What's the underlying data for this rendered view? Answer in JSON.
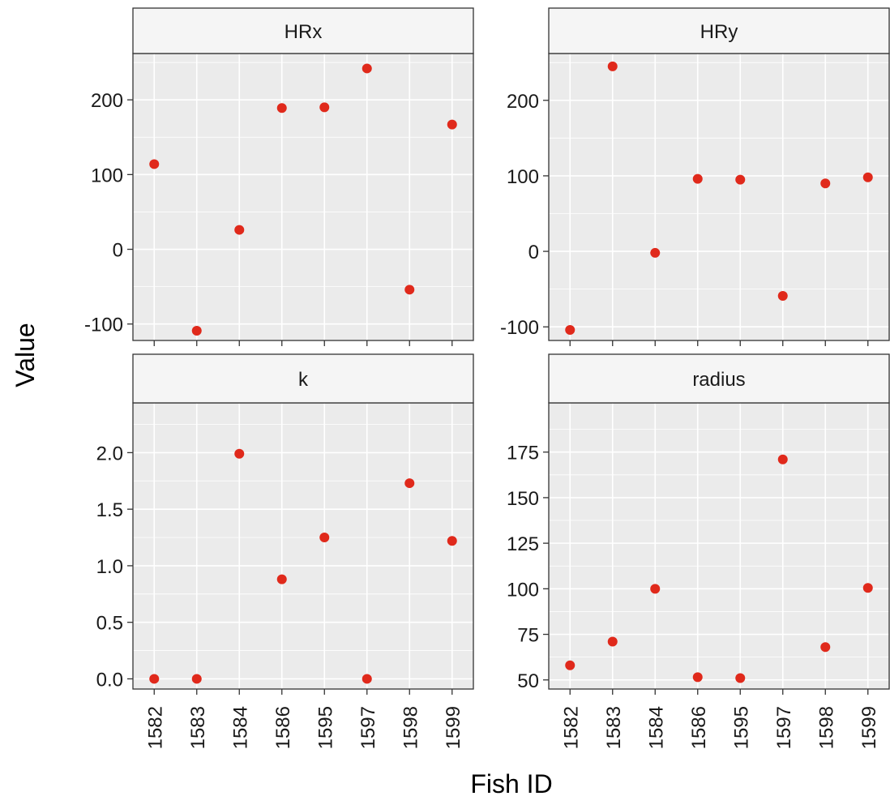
{
  "chart_data": {
    "type": "scatter",
    "layout": "facet-grid-2x2",
    "xlabel": "Fish ID",
    "ylabel": "Value",
    "categories": [
      "1582",
      "1583",
      "1584",
      "1586",
      "1595",
      "1597",
      "1598",
      "1599"
    ],
    "point_color": "#E0291B",
    "panel_background": "#EBEBEB",
    "strip_background": "#F5F5F5",
    "grid": true,
    "facets": [
      {
        "name": "HRx",
        "ylim": [
          -122,
          262
        ],
        "yticks": [
          -100,
          0,
          100,
          200
        ],
        "tick_labels": [
          "-100",
          "0",
          "100",
          "200"
        ],
        "values": [
          114,
          -109,
          26,
          189,
          190,
          242,
          -54,
          167
        ]
      },
      {
        "name": "HRy",
        "ylim": [
          -118,
          262
        ],
        "yticks": [
          -100,
          0,
          100,
          200
        ],
        "tick_labels": [
          "-100",
          "0",
          "100",
          "200"
        ],
        "values": [
          -104,
          245,
          -2,
          96,
          95,
          -59,
          90,
          98
        ]
      },
      {
        "name": "k",
        "ylim": [
          -0.09,
          2.44
        ],
        "yticks": [
          0,
          0.5,
          1,
          1.5,
          2
        ],
        "tick_labels": [
          "0.0",
          "0.5",
          "1.0",
          "1.5",
          "2.0"
        ],
        "values": [
          0,
          0,
          1.99,
          0.88,
          1.25,
          0,
          1.73,
          1.22
        ]
      },
      {
        "name": "radius",
        "ylim": [
          45,
          202
        ],
        "yticks": [
          50,
          75,
          100,
          125,
          150,
          175
        ],
        "tick_labels": [
          "50",
          "75",
          "100",
          "125",
          "150",
          "175"
        ],
        "values": [
          58,
          71,
          100,
          51.5,
          51,
          171,
          68,
          100.5
        ]
      }
    ]
  }
}
